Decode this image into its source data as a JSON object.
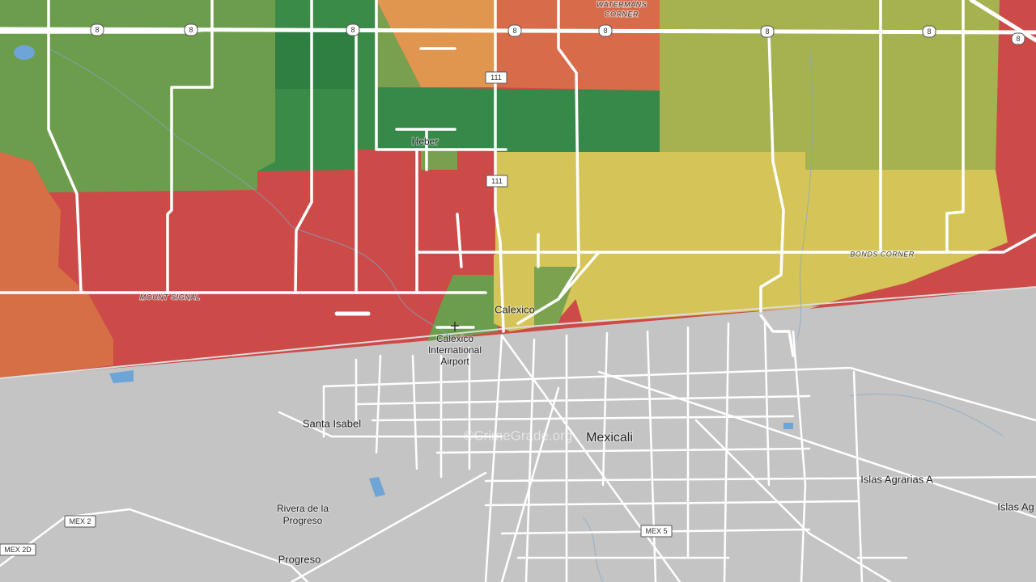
{
  "labels": {
    "watermans_corner": [
      "WATERMANS",
      "CORNER"
    ],
    "heber": "Heber",
    "mount_signal": "MOUNT SIGNAL",
    "bonds_corner": "BONDS CORNER",
    "calexico": "Calexico",
    "airport": [
      "Calexico",
      "International",
      "Airport"
    ],
    "mexicali": "Mexicali",
    "santa_isabel": "Santa Isabel",
    "islas_agrarias_a": "Islas Agrarias A",
    "islas_ag": "Islas Ag",
    "rivera": [
      "Rivera de la",
      "Progreso"
    ],
    "progreso": "Progreso",
    "watermark": "©CrimeGrade.org"
  },
  "shields": [
    "8",
    "8",
    "8",
    "8",
    "8",
    "8",
    "8",
    "8",
    "111",
    "111",
    "MEX 2",
    "MEX 2D",
    "MEX 5"
  ]
}
